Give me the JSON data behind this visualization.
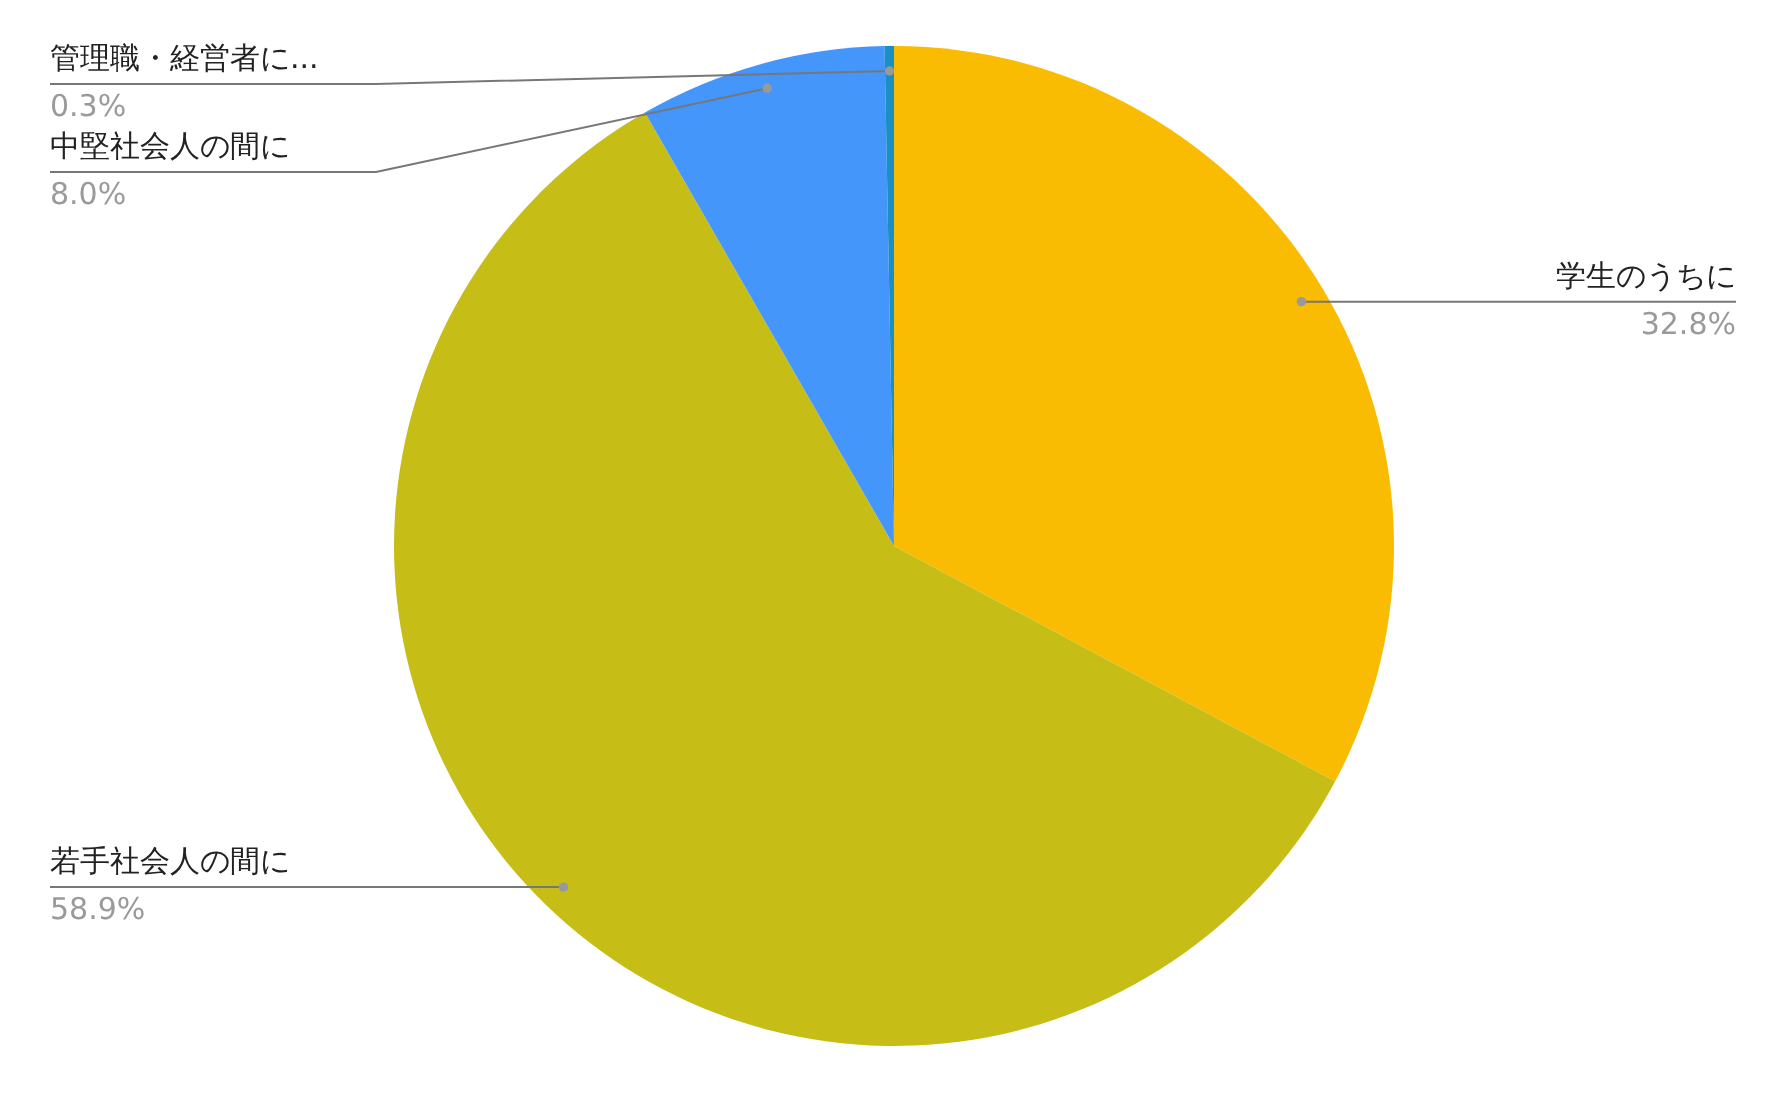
{
  "chart_data": {
    "type": "pie",
    "categories": [
      "学生のうちに",
      "若手社会人の間に",
      "中堅社会人の間に",
      "管理職・経営者に..."
    ],
    "values": [
      32.8,
      58.9,
      8.0,
      0.3
    ],
    "colors": [
      "#f9bc02",
      "#c6bd17",
      "#4596fb",
      "#1a8fc4"
    ],
    "value_labels": [
      "32.8%",
      "58.9%",
      "8.0%",
      "0.3%"
    ]
  }
}
